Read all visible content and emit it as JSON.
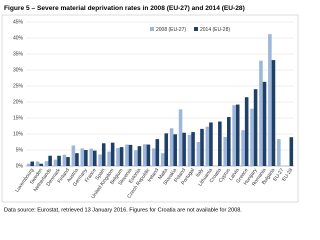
{
  "chart_data": {
    "type": "bar",
    "title": "Figure 5 – Severe material deprivation rates in 2008 (EU-27) and 2014 (EU-28)",
    "source": "Data source: Eurostat, retrieved 13 January 2016. Figures for Croatia are not available for 2008.",
    "categories": [
      "Luxembourg",
      "Sweden",
      "Netherlands",
      "Denmark",
      "Finland",
      "Austria",
      "Germany",
      "France",
      "Spain",
      "United Kingdom",
      "Belgium",
      "Slovenia",
      "Estonia",
      "Czech Republic",
      "Ireland",
      "Malta",
      "Slovakia",
      "Poland",
      "Portugal",
      "Italy",
      "Lithuania",
      "Croatia",
      "Cyprus",
      "Latvia",
      "Greece",
      "Hungary",
      "Romania",
      "Bulgaria",
      "EU-27",
      "EU-28"
    ],
    "series": [
      {
        "name": "2008 (EU-27)",
        "color": "#9db6d9",
        "values": [
          0.7,
          1.4,
          1.5,
          2.0,
          3.5,
          6.4,
          5.5,
          5.4,
          3.6,
          4.5,
          5.6,
          6.7,
          4.9,
          6.8,
          5.5,
          4.0,
          11.8,
          17.7,
          9.7,
          7.5,
          12.3,
          null,
          9.1,
          19.0,
          11.2,
          17.9,
          32.9,
          41.2,
          8.4,
          null
        ]
      },
      {
        "name": "2014 (EU-28)",
        "color": "#1f3f66",
        "values": [
          1.4,
          0.7,
          3.2,
          3.2,
          2.8,
          4.0,
          5.0,
          4.8,
          7.1,
          7.3,
          5.9,
          6.6,
          6.2,
          6.7,
          8.4,
          10.2,
          9.9,
          10.4,
          10.6,
          11.6,
          13.6,
          13.9,
          15.3,
          19.2,
          21.5,
          24.0,
          26.3,
          33.1,
          null,
          9.0
        ]
      }
    ],
    "ylim": [
      0,
      45
    ],
    "yticks": [
      {
        "value": 0,
        "label": "0%"
      },
      {
        "value": 5,
        "label": "5%"
      },
      {
        "value": 10,
        "label": "10%"
      },
      {
        "value": 15,
        "label": "15%"
      },
      {
        "value": 20,
        "label": "20%"
      },
      {
        "value": 25,
        "label": "25%"
      },
      {
        "value": 30,
        "label": "30%"
      },
      {
        "value": 35,
        "label": "35%"
      },
      {
        "value": 40,
        "label": "40%"
      },
      {
        "value": 45,
        "label": "45%"
      }
    ],
    "grid": true,
    "legend": "top"
  }
}
